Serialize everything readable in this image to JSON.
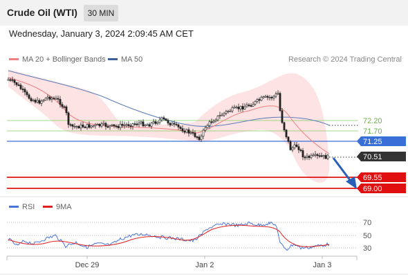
{
  "header": {
    "title": "Crude Oil (WTI)",
    "interval": "30 MIN"
  },
  "datetime": "Wednesday, January 3, 2024 2:09:45 AM CET",
  "legend": {
    "bollinger": {
      "label": "MA 20 + Bollinger Bands",
      "color": "#f08080"
    },
    "ma50": {
      "label": "MA 50",
      "color": "#3a5f9a"
    }
  },
  "credit": "Research © 2024 Trading Central",
  "price_levels": [
    {
      "label": "72.20",
      "style": "resistance-green"
    },
    {
      "label": "71.70",
      "style": "resistance-green"
    },
    {
      "label": "71.25",
      "style": "pivot-blue"
    },
    {
      "label": "70.51",
      "style": "last-price"
    },
    {
      "label": "69.55",
      "style": "support-red"
    },
    {
      "label": "69.00",
      "style": "support-red"
    }
  ],
  "rsi": {
    "legend": {
      "rsi_label": "RSI",
      "ma_label": "9MA",
      "rsi_color": "#4a74d8",
      "ma_color": "#e02020"
    },
    "levels": [
      "70",
      "50",
      "30"
    ]
  },
  "x_axis": {
    "labels": [
      "Dec 29",
      "Jan 2",
      "Jan 3"
    ]
  },
  "colors": {
    "candle_up": "#ffffff",
    "candle_down": "#222222",
    "resistance": "#88cc66",
    "pivot": "#3a6fd8",
    "support": "#e01010",
    "band_fill": "#fde3e3",
    "arrow": "#2a5fb8"
  }
}
